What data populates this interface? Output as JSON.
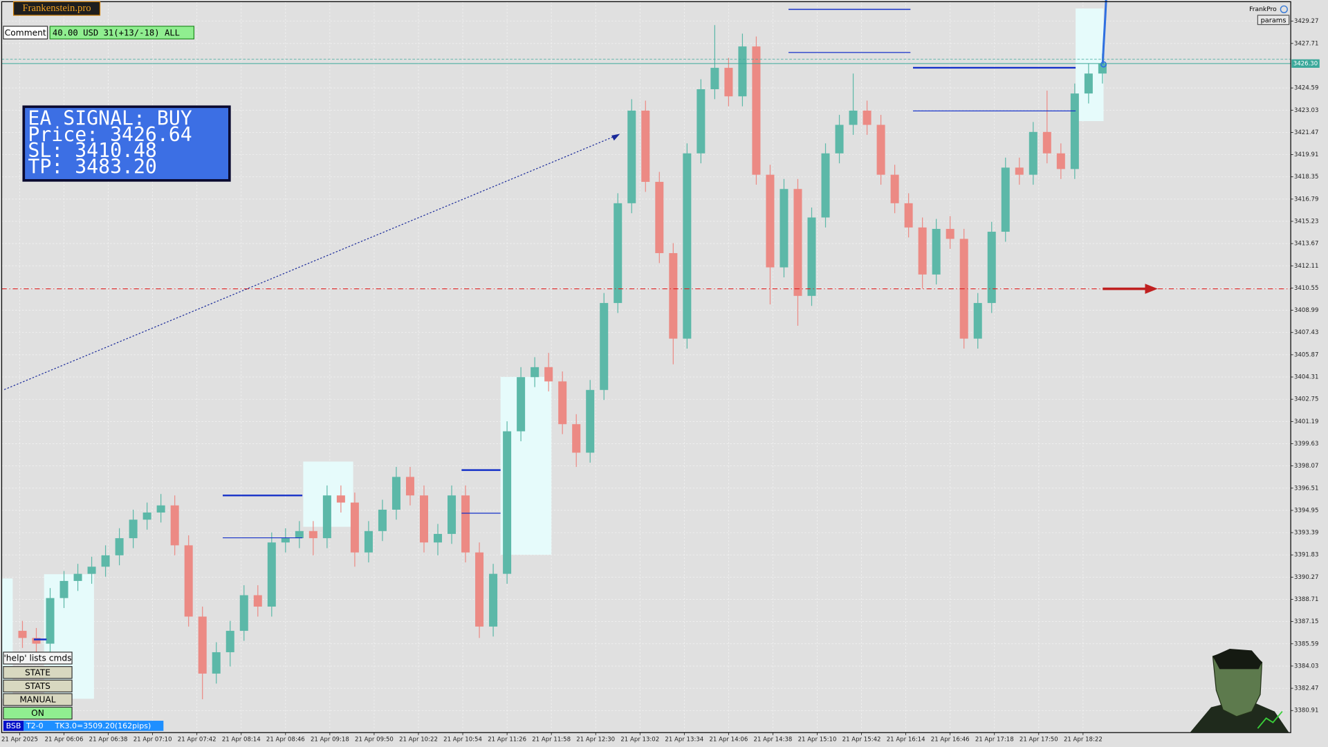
{
  "chart_data": {
    "type": "candlestick",
    "up_color": "#5cb8a8",
    "down_color": "#ec8a84",
    "grid": true,
    "xlim": [
      321,
      1252
    ],
    "ylim": [
      3379.36,
      3430.64
    ],
    "xticks": [
      {
        "value": 334,
        "label": "21 Apr 2025"
      },
      {
        "value": 366,
        "label": "21 Apr 06:06"
      },
      {
        "value": 398,
        "label": "21 Apr 06:38"
      },
      {
        "value": 430,
        "label": "21 Apr 07:10"
      },
      {
        "value": 462,
        "label": "21 Apr 07:42"
      },
      {
        "value": 494,
        "label": "21 Apr 08:14"
      },
      {
        "value": 526,
        "label": "21 Apr 08:46"
      },
      {
        "value": 558,
        "label": "21 Apr 09:18"
      },
      {
        "value": 590,
        "label": "21 Apr 09:50"
      },
      {
        "value": 622,
        "label": "21 Apr 10:22"
      },
      {
        "value": 654,
        "label": "21 Apr 10:54"
      },
      {
        "value": 686,
        "label": "21 Apr 11:26"
      },
      {
        "value": 718,
        "label": "21 Apr 11:58"
      },
      {
        "value": 750,
        "label": "21 Apr 12:30"
      },
      {
        "value": 782,
        "label": "21 Apr 13:02"
      },
      {
        "value": 814,
        "label": "21 Apr 13:34"
      },
      {
        "value": 846,
        "label": "21 Apr 14:06"
      },
      {
        "value": 878,
        "label": "21 Apr 14:38"
      },
      {
        "value": 910,
        "label": "21 Apr 15:10"
      },
      {
        "value": 942,
        "label": "21 Apr 15:42"
      },
      {
        "value": 974,
        "label": "21 Apr 16:14"
      },
      {
        "value": 1006,
        "label": "21 Apr 16:46"
      },
      {
        "value": 1038,
        "label": "21 Apr 17:18"
      },
      {
        "value": 1070,
        "label": "21 Apr 17:50"
      },
      {
        "value": 1102,
        "label": "21 Apr 18:22"
      }
    ],
    "yticks": [
      3429.27,
      3427.71,
      3424.59,
      3423.03,
      3421.47,
      3419.91,
      3418.35,
      3416.79,
      3415.23,
      3413.67,
      3412.11,
      3410.55,
      3408.99,
      3407.43,
      3405.87,
      3404.31,
      3402.75,
      3401.19,
      3399.63,
      3398.07,
      3396.51,
      3394.95,
      3393.39,
      3391.83,
      3390.27,
      3388.71,
      3387.15,
      3385.59,
      3384.03,
      3382.47,
      3380.91
    ],
    "last_price": {
      "value": 3426.3,
      "label": "3426.30"
    },
    "x": [
      336,
      346,
      356,
      366,
      376,
      386,
      396,
      406,
      416,
      426,
      436,
      446,
      456,
      466,
      476,
      486,
      496,
      506,
      516,
      526,
      536,
      546,
      556,
      566,
      576,
      586,
      596,
      606,
      616,
      626,
      636,
      646,
      656,
      666,
      676,
      686,
      696,
      706,
      716,
      726,
      736,
      746,
      756,
      766,
      776,
      786,
      796,
      806,
      816,
      826,
      836,
      846,
      856,
      866,
      876,
      886,
      896,
      906,
      916,
      926,
      936,
      946,
      956,
      966,
      976,
      986,
      996,
      1006,
      1016,
      1026,
      1036,
      1046,
      1056,
      1066,
      1076,
      1086,
      1096,
      1106,
      1116
    ],
    "open": [
      3386.5,
      3386.0,
      3385.6,
      3388.8,
      3390.0,
      3390.5,
      3391.0,
      3391.8,
      3393.0,
      3394.3,
      3394.8,
      3395.3,
      3392.5,
      3387.5,
      3383.5,
      3385.0,
      3386.5,
      3389.0,
      3388.2,
      3392.7,
      3393.0,
      3393.5,
      3393.0,
      3396.0,
      3395.5,
      3392.0,
      3393.5,
      3395.0,
      3397.3,
      3396.0,
      3392.7,
      3393.3,
      3396.0,
      3392.0,
      3386.8,
      3390.5,
      3400.5,
      3404.3,
      3405.0,
      3404.0,
      3401.0,
      3399.0,
      3403.4,
      3409.5,
      3416.5,
      3423.0,
      3418.0,
      3413.0,
      3407.0,
      3420.0,
      3424.5,
      3426.0,
      3424.0,
      3427.5,
      3418.5,
      3412.0,
      3417.5,
      3410.0,
      3415.5,
      3420.0,
      3422.0,
      3423.0,
      3422.0,
      3418.5,
      3416.5,
      3414.8,
      3411.5,
      3414.7,
      3414.0,
      3407.0,
      3409.5,
      3414.5,
      3419.0,
      3418.5,
      3421.5,
      3420.0,
      3418.9,
      3424.2,
      3425.6
    ],
    "high": [
      3387.2,
      3386.7,
      3389.5,
      3390.7,
      3391.2,
      3391.7,
      3392.5,
      3393.7,
      3395.0,
      3395.5,
      3396.1,
      3396.0,
      3393.2,
      3388.2,
      3385.7,
      3387.2,
      3389.7,
      3389.7,
      3393.4,
      3393.7,
      3394.2,
      3394.2,
      3396.7,
      3396.7,
      3396.2,
      3394.2,
      3395.7,
      3398.0,
      3398.0,
      3396.7,
      3394.0,
      3396.7,
      3396.7,
      3392.7,
      3391.2,
      3401.2,
      3405.0,
      3405.7,
      3406.0,
      3404.7,
      3401.7,
      3404.1,
      3410.2,
      3417.2,
      3423.8,
      3423.7,
      3418.7,
      3413.7,
      3420.7,
      3425.2,
      3429.0,
      3426.7,
      3428.4,
      3428.2,
      3419.2,
      3418.2,
      3418.2,
      3416.2,
      3420.7,
      3422.7,
      3425.6,
      3423.7,
      3422.7,
      3419.2,
      3417.2,
      3415.5,
      3415.4,
      3415.6,
      3414.7,
      3410.2,
      3415.2,
      3419.7,
      3419.7,
      3422.2,
      3424.4,
      3420.7,
      3424.9,
      3426.3,
      3427.0
    ],
    "low": [
      3385.3,
      3384.9,
      3384.9,
      3388.1,
      3389.3,
      3389.8,
      3390.3,
      3391.1,
      3392.3,
      3393.6,
      3394.1,
      3391.8,
      3386.8,
      3381.7,
      3382.8,
      3384.0,
      3385.8,
      3387.5,
      3387.5,
      3392.0,
      3392.3,
      3391.8,
      3392.3,
      3394.8,
      3391.0,
      3391.3,
      3392.8,
      3394.3,
      3395.3,
      3392.0,
      3391.8,
      3392.6,
      3391.3,
      3386.0,
      3386.1,
      3389.8,
      3399.8,
      3403.6,
      3403.3,
      3400.3,
      3398.0,
      3398.3,
      3402.7,
      3408.8,
      3415.8,
      3417.3,
      3412.3,
      3405.2,
      3406.3,
      3419.3,
      3423.8,
      3423.3,
      3423.3,
      3417.8,
      3409.4,
      3411.3,
      3407.9,
      3409.3,
      3414.8,
      3419.3,
      3421.3,
      3421.3,
      3417.8,
      3415.8,
      3414.1,
      3410.5,
      3410.8,
      3413.3,
      3406.3,
      3406.3,
      3408.8,
      3413.8,
      3417.8,
      3417.8,
      3419.3,
      3418.2,
      3418.2,
      3423.5,
      3424.9
    ],
    "close": [
      3386.0,
      3385.6,
      3388.8,
      3390.0,
      3390.5,
      3391.0,
      3391.8,
      3393.0,
      3394.3,
      3394.8,
      3395.3,
      3392.5,
      3387.5,
      3383.5,
      3385.0,
      3386.5,
      3389.0,
      3388.2,
      3392.7,
      3393.0,
      3393.5,
      3393.0,
      3396.0,
      3395.5,
      3392.0,
      3393.5,
      3395.0,
      3397.3,
      3396.0,
      3392.7,
      3393.3,
      3396.0,
      3392.0,
      3386.8,
      3390.5,
      3400.5,
      3404.3,
      3405.0,
      3404.0,
      3401.0,
      3399.0,
      3403.4,
      3409.5,
      3416.5,
      3423.0,
      3418.0,
      3413.0,
      3407.0,
      3420.0,
      3424.5,
      3426.0,
      3424.0,
      3427.5,
      3418.5,
      3412.0,
      3417.5,
      3410.0,
      3415.5,
      3420.0,
      3422.0,
      3423.0,
      3422.0,
      3418.5,
      3416.5,
      3414.8,
      3411.5,
      3414.7,
      3414.0,
      3407.0,
      3409.5,
      3414.5,
      3419.0,
      3418.5,
      3421.5,
      3420.0,
      3418.9,
      3424.2,
      3425.6,
      3426.3
    ]
  },
  "ui": {
    "logo": "Frankenstein.pro",
    "comment_label": "Comment",
    "account": "40.00 USD 31(+13/-18) ALL",
    "signal": {
      "title": "EA SIGNAL: BUY",
      "lines": [
        "Price: 3426.64",
        "SL:     3410.48",
        "TP:     3483.20"
      ]
    },
    "buttons": [
      "'help' lists cmds",
      "STATE",
      "STATS",
      "MANUAL",
      "ON"
    ],
    "status": [
      "BSB",
      "T2-0",
      "TK3.0=3509.20(162pips)"
    ],
    "brand": "FrankPro",
    "params": "params"
  }
}
